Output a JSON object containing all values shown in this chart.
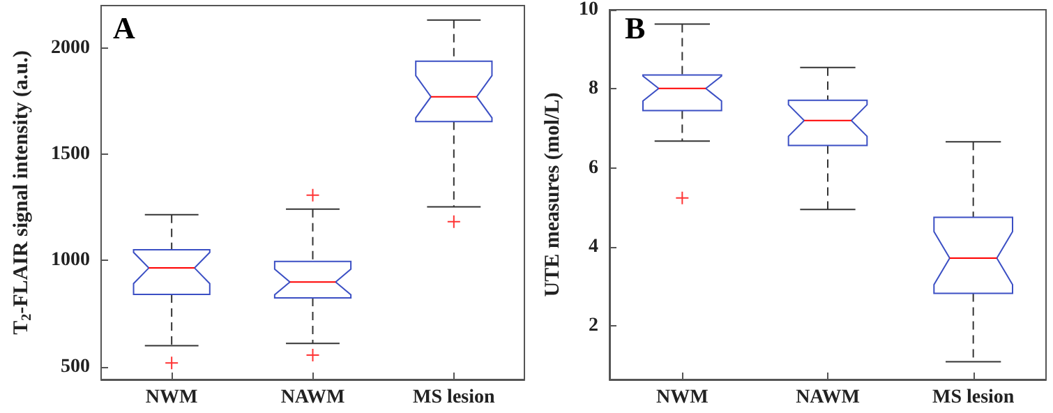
{
  "chart_data": [
    {
      "type": "box",
      "title": "A",
      "ylabel": "T$_{2}$-FLAIR signal intensity (a.u.)",
      "categories": [
        "NWM",
        "NAWM",
        "MS lesion"
      ],
      "ylim": [
        440,
        2200
      ],
      "yticks": [
        500,
        1000,
        1500,
        2000
      ],
      "series": [
        {
          "color": "#3b4fc4",
          "boxes": [
            {
              "low": 599,
              "q1": 841,
              "median": 965,
              "q3": 1051,
              "high": 1216,
              "outliers": [
                518
              ]
            },
            {
              "low": 610,
              "q1": 824,
              "median": 899,
              "q3": 996,
              "high": 1242,
              "outliers": [
                1308,
                555
              ]
            },
            {
              "low": 1253,
              "q1": 1654,
              "median": 1771,
              "q3": 1938,
              "high": 2132,
              "outliers": [
                1183
              ]
            }
          ]
        }
      ]
    },
    {
      "type": "box",
      "title": "B",
      "ylabel": "UTE measures (mol/L)",
      "categories": [
        "NWM",
        "NAWM",
        "MS lesion"
      ],
      "ylim": [
        0.65,
        10
      ],
      "yticks": [
        2,
        4,
        6,
        8,
        10
      ],
      "series": [
        {
          "color": "#3b4fc4",
          "boxes": [
            {
              "low": 6.68,
              "q1": 7.45,
              "median": 8.01,
              "q3": 8.35,
              "high": 9.64,
              "outliers": [
                5.24
              ]
            },
            {
              "low": 4.95,
              "q1": 6.57,
              "median": 7.2,
              "q3": 7.71,
              "high": 8.54
            },
            {
              "low": 1.1,
              "q1": 2.83,
              "median": 3.72,
              "q3": 4.75,
              "high": 6.66
            }
          ]
        }
      ]
    }
  ]
}
